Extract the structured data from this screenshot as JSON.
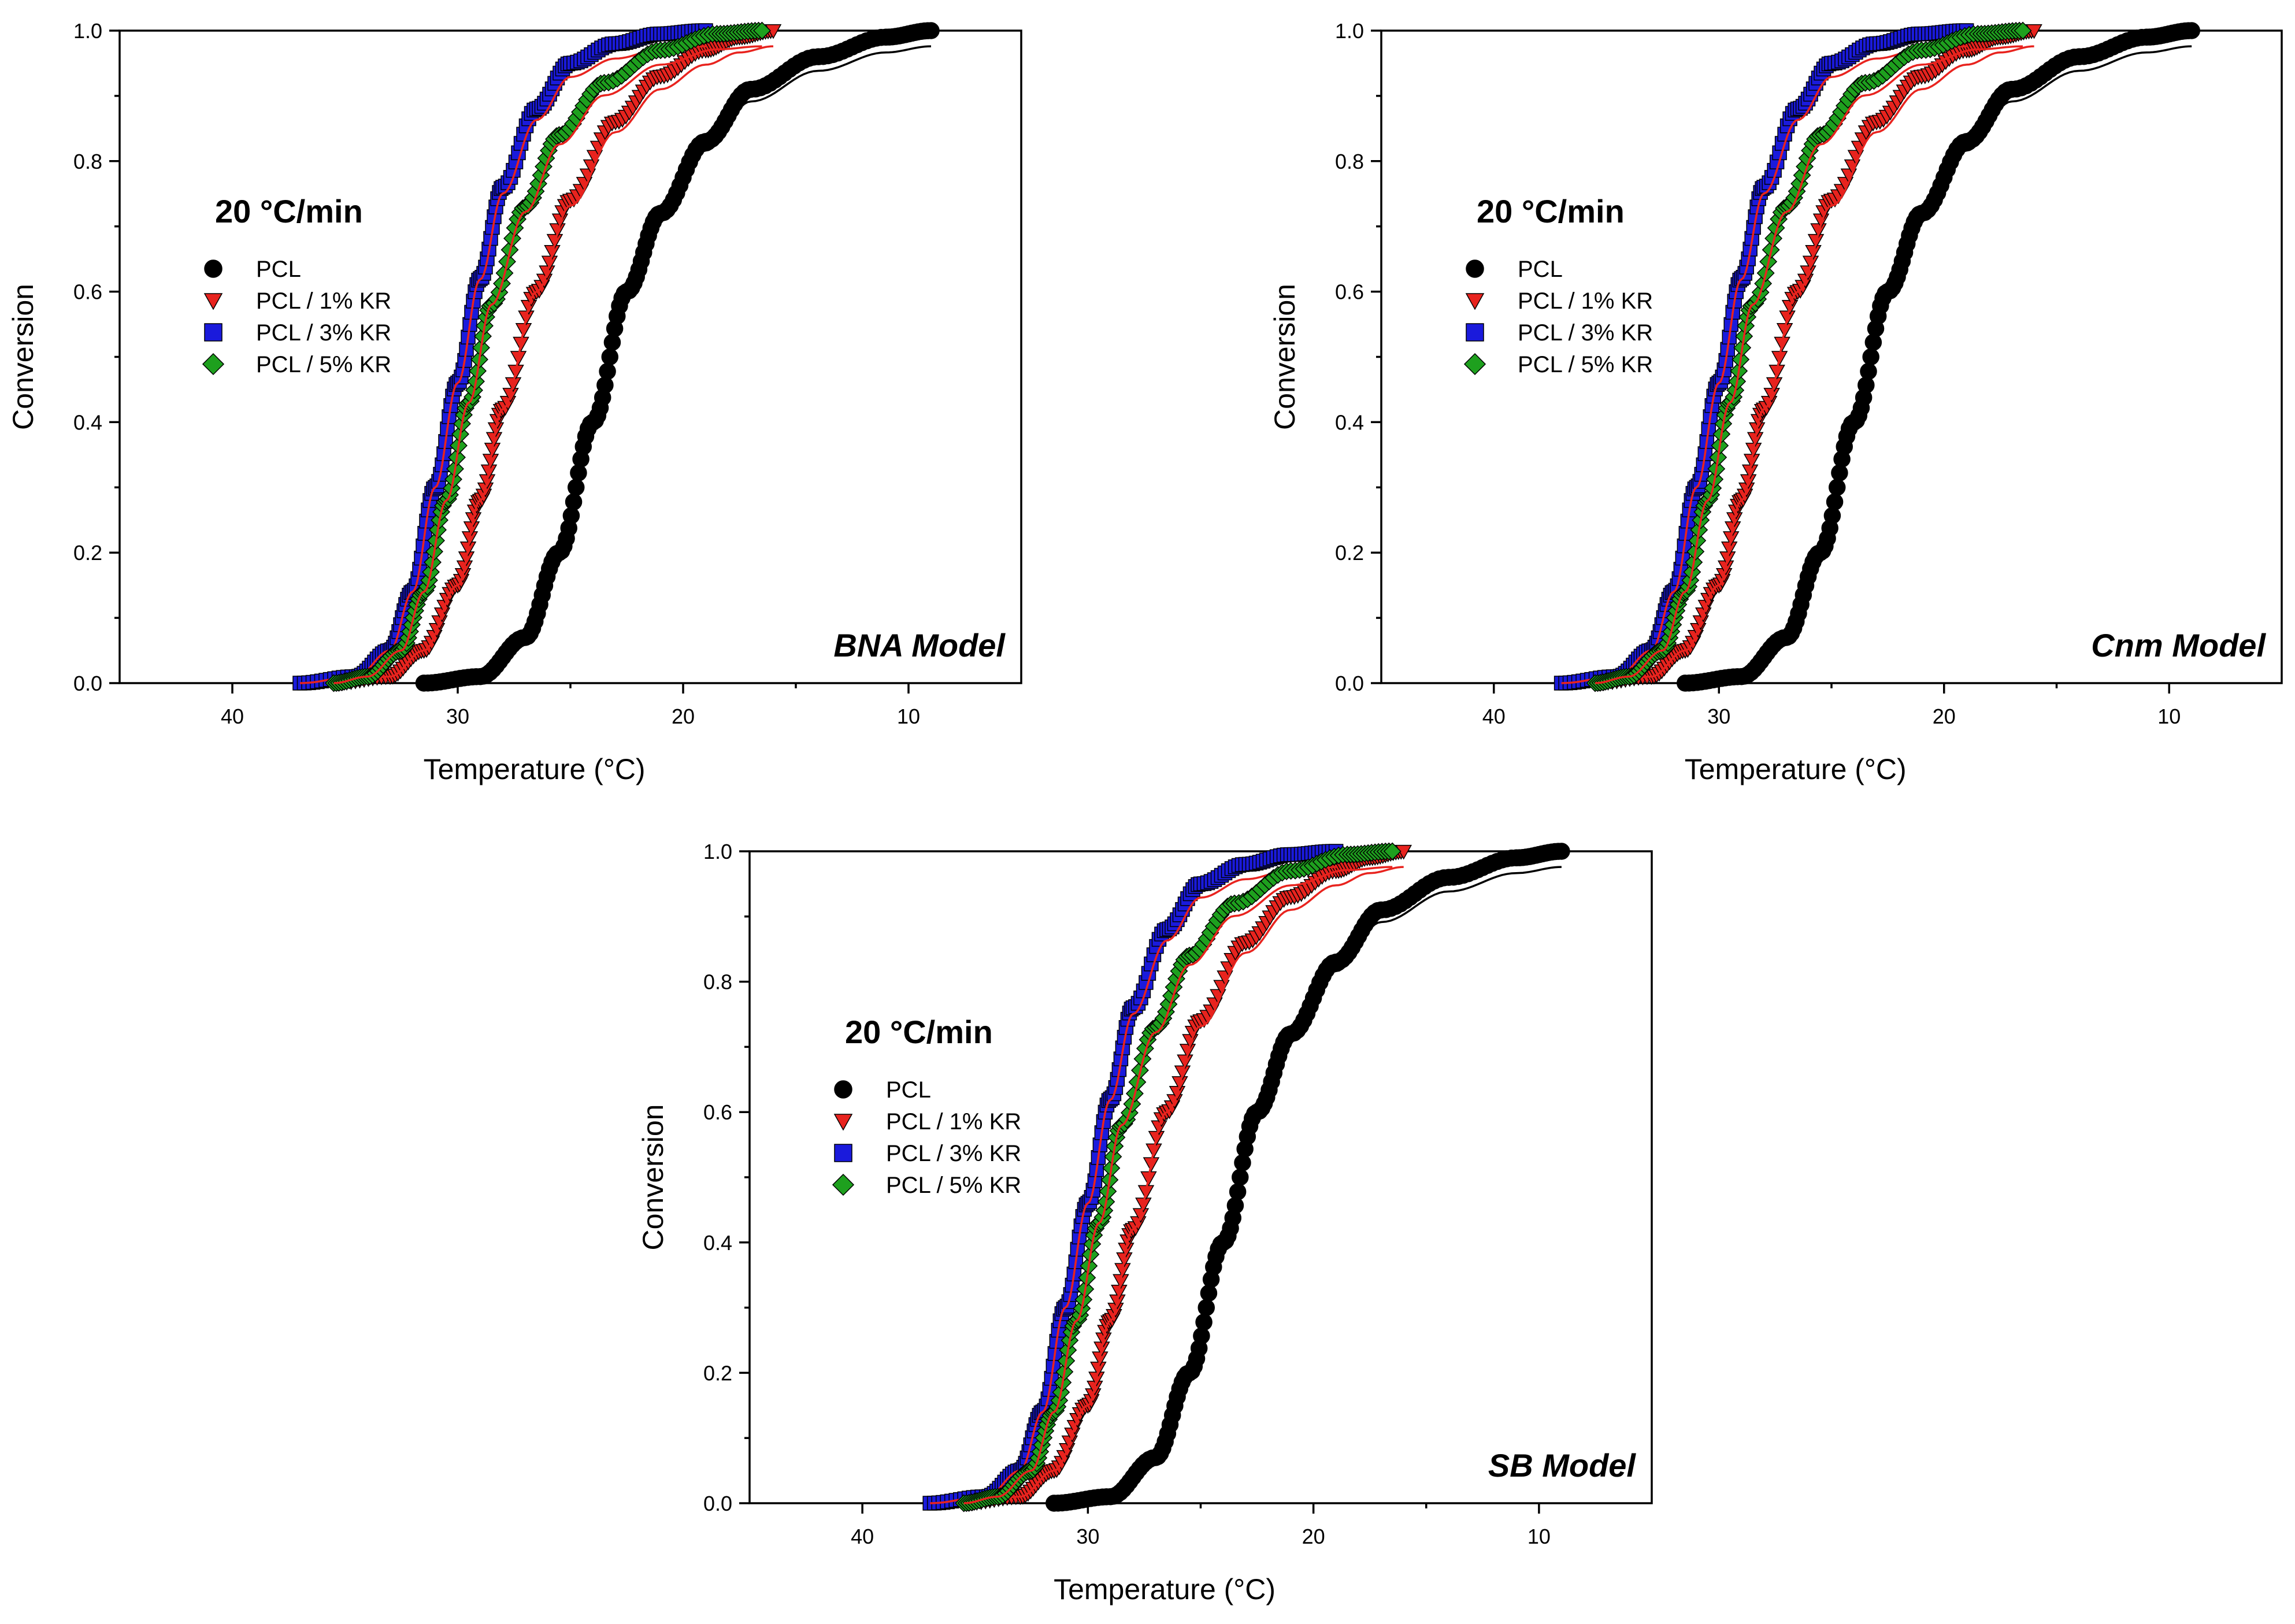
{
  "chart_data": [
    {
      "type": "scatter",
      "title": "BNA Model",
      "rate_label": "20 °C/min",
      "xlabel": "Temperature (°C)",
      "ylabel": "Conversion",
      "xlim": [
        45,
        5
      ],
      "ylim": [
        0,
        1.0
      ],
      "x_ticks": [
        "40",
        "30",
        "20",
        "10"
      ],
      "y_ticks": [
        "0.0",
        "0.2",
        "0.4",
        "0.6",
        "0.8",
        "1.0"
      ],
      "series": [
        {
          "name": "PCL",
          "marker": "circle",
          "color": "#000000",
          "x": [
            31.5,
            29,
            27,
            25.5,
            24,
            22.5,
            21,
            19,
            17,
            14,
            11,
            9
          ],
          "values": [
            0.0,
            0.01,
            0.07,
            0.2,
            0.4,
            0.6,
            0.72,
            0.83,
            0.91,
            0.96,
            0.99,
            1.0
          ]
        },
        {
          "name": "PCL / 1% KR",
          "marker": "triangle-down",
          "color": "#E8231E",
          "x": [
            35.5,
            33,
            31.5,
            30,
            29,
            28,
            26.5,
            25,
            23,
            21,
            19,
            17.5,
            16
          ],
          "values": [
            0.0,
            0.01,
            0.05,
            0.15,
            0.28,
            0.42,
            0.6,
            0.74,
            0.86,
            0.93,
            0.97,
            0.99,
            1.0
          ]
        },
        {
          "name": "PCL / 3% KR",
          "marker": "square",
          "color": "#1A1ADC",
          "x": [
            37,
            34.5,
            33,
            32,
            31,
            30,
            29,
            28,
            26.5,
            25,
            23,
            21,
            19
          ],
          "values": [
            0.0,
            0.01,
            0.05,
            0.14,
            0.3,
            0.46,
            0.62,
            0.76,
            0.88,
            0.95,
            0.98,
            0.995,
            1.0
          ]
        },
        {
          "name": "PCL / 5% KR",
          "marker": "diamond",
          "color": "#1EA01E",
          "x": [
            35.5,
            34,
            32.5,
            31.5,
            30.5,
            29.5,
            28.5,
            27,
            25.5,
            23.5,
            21,
            18.5,
            16.5
          ],
          "values": [
            0.0,
            0.01,
            0.05,
            0.14,
            0.28,
            0.43,
            0.58,
            0.73,
            0.84,
            0.92,
            0.97,
            0.995,
            1.0
          ]
        }
      ]
    },
    {
      "type": "scatter",
      "title": "Cnm Model",
      "rate_label": "20 °C/min",
      "xlabel": "Temperature (°C)",
      "ylabel": "Conversion",
      "xlim": [
        45,
        5
      ],
      "ylim": [
        0,
        1.0
      ],
      "x_ticks": [
        "40",
        "30",
        "20",
        "10"
      ],
      "y_ticks": [
        "0.0",
        "0.2",
        "0.4",
        "0.6",
        "0.8",
        "1.0"
      ],
      "series": [
        {
          "name": "PCL",
          "marker": "circle",
          "color": "#000000",
          "x": [
            31.5,
            29,
            27,
            25.5,
            24,
            22.5,
            21,
            19,
            17,
            14,
            11,
            9
          ],
          "values": [
            0.0,
            0.01,
            0.07,
            0.2,
            0.4,
            0.6,
            0.72,
            0.83,
            0.91,
            0.96,
            0.99,
            1.0
          ]
        },
        {
          "name": "PCL / 1% KR",
          "marker": "triangle-down",
          "color": "#E8231E",
          "x": [
            35.5,
            33,
            31.5,
            30,
            29,
            28,
            26.5,
            25,
            23,
            21,
            19,
            17.5,
            16
          ],
          "values": [
            0.0,
            0.01,
            0.05,
            0.15,
            0.28,
            0.42,
            0.6,
            0.74,
            0.86,
            0.93,
            0.97,
            0.99,
            1.0
          ]
        },
        {
          "name": "PCL / 3% KR",
          "marker": "square",
          "color": "#1A1ADC",
          "x": [
            37,
            34.5,
            33,
            32,
            31,
            30,
            29,
            28,
            26.5,
            25,
            23,
            21,
            19
          ],
          "values": [
            0.0,
            0.01,
            0.05,
            0.14,
            0.3,
            0.46,
            0.62,
            0.76,
            0.88,
            0.95,
            0.98,
            0.995,
            1.0
          ]
        },
        {
          "name": "PCL / 5% KR",
          "marker": "diamond",
          "color": "#1EA01E",
          "x": [
            35.5,
            34,
            32.5,
            31.5,
            30.5,
            29.5,
            28.5,
            27,
            25.5,
            23.5,
            21,
            18.5,
            16.5
          ],
          "values": [
            0.0,
            0.01,
            0.05,
            0.14,
            0.28,
            0.43,
            0.58,
            0.73,
            0.84,
            0.92,
            0.97,
            0.995,
            1.0
          ]
        }
      ]
    },
    {
      "type": "scatter",
      "title": "SB Model",
      "rate_label": "20 °C/min",
      "xlabel": "Temperature (°C)",
      "ylabel": "Conversion",
      "xlim": [
        45,
        5
      ],
      "ylim": [
        0,
        1.0
      ],
      "x_ticks": [
        "40",
        "30",
        "20",
        "10"
      ],
      "y_ticks": [
        "0.0",
        "0.2",
        "0.4",
        "0.6",
        "0.8",
        "1.0"
      ],
      "series": [
        {
          "name": "PCL",
          "marker": "circle",
          "color": "#000000",
          "x": [
            31.5,
            29,
            27,
            25.5,
            24,
            22.5,
            21,
            19,
            17,
            14,
            11,
            9
          ],
          "values": [
            0.0,
            0.01,
            0.07,
            0.2,
            0.4,
            0.6,
            0.72,
            0.83,
            0.91,
            0.96,
            0.99,
            1.0
          ]
        },
        {
          "name": "PCL / 1% KR",
          "marker": "triangle-down",
          "color": "#E8231E",
          "x": [
            35.5,
            33,
            31.5,
            30,
            29,
            28,
            26.5,
            25,
            23,
            21,
            19,
            17.5,
            16
          ],
          "values": [
            0.0,
            0.01,
            0.05,
            0.15,
            0.28,
            0.42,
            0.6,
            0.74,
            0.86,
            0.93,
            0.97,
            0.99,
            1.0
          ]
        },
        {
          "name": "PCL / 3% KR",
          "marker": "square",
          "color": "#1A1ADC",
          "x": [
            37,
            34.5,
            33,
            32,
            31,
            30,
            29,
            28,
            26.5,
            25,
            23,
            21,
            19
          ],
          "values": [
            0.0,
            0.01,
            0.05,
            0.14,
            0.3,
            0.46,
            0.62,
            0.76,
            0.88,
            0.95,
            0.98,
            0.995,
            1.0
          ]
        },
        {
          "name": "PCL / 5% KR",
          "marker": "diamond",
          "color": "#1EA01E",
          "x": [
            35.5,
            34,
            32.5,
            31.5,
            30.5,
            29.5,
            28.5,
            27,
            25.5,
            23.5,
            21,
            18.5,
            16.5
          ],
          "values": [
            0.0,
            0.01,
            0.05,
            0.14,
            0.28,
            0.43,
            0.58,
            0.73,
            0.84,
            0.92,
            0.97,
            0.995,
            1.0
          ]
        }
      ]
    }
  ]
}
